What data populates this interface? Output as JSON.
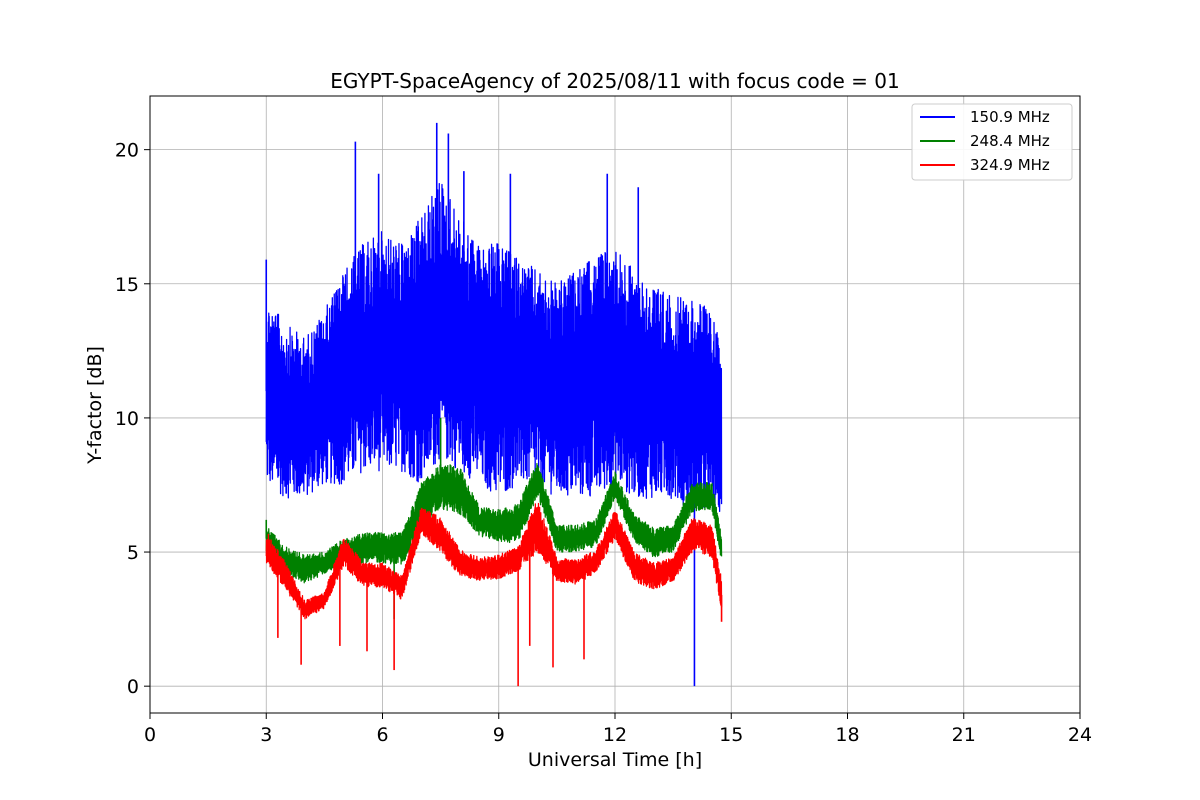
{
  "chart_data": {
    "type": "line",
    "title": "EGYPT-SpaceAgency of 2025/08/11 with focus code = 01",
    "xlabel": "Universal Time [h]",
    "ylabel": "Y-factor [dB]",
    "xlim": [
      0,
      24
    ],
    "ylim": [
      -1,
      22
    ],
    "xticks": [
      0,
      3,
      6,
      9,
      12,
      15,
      18,
      21,
      24
    ],
    "yticks": [
      0,
      5,
      10,
      15,
      20
    ],
    "grid": true,
    "legend_position": "top-right",
    "series": [
      {
        "name": "150.9 MHz",
        "color": "#0000ff",
        "x": [
          3.0,
          3.5,
          4.0,
          4.5,
          5.0,
          5.5,
          6.0,
          6.5,
          7.0,
          7.5,
          8.0,
          8.5,
          9.0,
          9.5,
          10.0,
          10.5,
          11.0,
          11.5,
          12.0,
          12.5,
          13.0,
          13.5,
          14.0,
          14.5,
          14.75
        ],
        "min": [
          7.5,
          7.0,
          7.0,
          7.5,
          7.5,
          8.0,
          8.0,
          8.0,
          7.5,
          8.5,
          8.0,
          7.5,
          7.0,
          7.5,
          7.5,
          7.0,
          7.0,
          7.0,
          7.5,
          7.0,
          7.0,
          7.0,
          6.5,
          6.5,
          6.5
        ],
        "max": [
          14.5,
          13.5,
          13.0,
          14.0,
          15.5,
          16.5,
          17.0,
          16.5,
          17.5,
          19.0,
          17.5,
          16.5,
          16.5,
          16.0,
          15.5,
          15.0,
          15.5,
          16.0,
          16.5,
          15.5,
          15.0,
          14.5,
          14.5,
          14.0,
          12.5
        ],
        "spikes": [
          [
            3.0,
            15.9
          ],
          [
            5.3,
            20.3
          ],
          [
            5.9,
            19.1
          ],
          [
            7.4,
            21.0
          ],
          [
            7.7,
            20.6
          ],
          [
            8.1,
            19.2
          ],
          [
            9.3,
            19.1
          ],
          [
            11.8,
            19.1
          ],
          [
            12.6,
            18.6
          ],
          [
            14.05,
            0.0
          ]
        ]
      },
      {
        "name": "248.4 MHz",
        "color": "#008000",
        "x": [
          3.0,
          3.5,
          4.0,
          4.5,
          5.0,
          5.5,
          6.0,
          6.5,
          7.0,
          7.5,
          8.0,
          8.5,
          9.0,
          9.5,
          10.0,
          10.5,
          11.0,
          11.5,
          12.0,
          12.5,
          13.0,
          13.5,
          14.0,
          14.5,
          14.75
        ],
        "min": [
          5.0,
          4.2,
          3.8,
          4.2,
          4.5,
          4.6,
          4.6,
          4.5,
          5.8,
          6.6,
          6.4,
          5.6,
          5.4,
          5.3,
          7.1,
          5.0,
          5.0,
          5.2,
          7.0,
          5.4,
          4.8,
          5.0,
          6.5,
          6.6,
          4.6
        ],
        "max": [
          6.0,
          5.2,
          4.9,
          5.0,
          5.5,
          5.7,
          5.8,
          5.7,
          7.6,
          8.3,
          8.2,
          6.7,
          6.6,
          6.8,
          8.4,
          6.0,
          6.0,
          6.2,
          8.0,
          6.4,
          5.9,
          6.0,
          7.6,
          7.6,
          5.6
        ],
        "spikes": [
          [
            3.0,
            6.2
          ],
          [
            7.5,
            10.0
          ],
          [
            6.3,
            2.5
          ]
        ]
      },
      {
        "name": "324.9 MHz",
        "color": "#ff0000",
        "x": [
          3.0,
          3.5,
          4.0,
          4.5,
          5.0,
          5.5,
          6.0,
          6.5,
          7.0,
          7.5,
          8.0,
          8.5,
          9.0,
          9.5,
          10.0,
          10.5,
          11.0,
          11.5,
          12.0,
          12.5,
          13.0,
          13.5,
          14.0,
          14.5,
          14.75
        ],
        "min": [
          4.6,
          3.6,
          2.5,
          2.9,
          4.5,
          3.7,
          3.7,
          3.2,
          5.7,
          5.0,
          4.1,
          3.9,
          4.0,
          4.3,
          5.0,
          3.9,
          3.8,
          4.2,
          5.5,
          3.9,
          3.6,
          3.9,
          5.0,
          4.8,
          2.8
        ],
        "max": [
          5.8,
          4.6,
          3.2,
          3.5,
          5.6,
          4.6,
          4.6,
          4.1,
          6.7,
          6.3,
          5.1,
          4.8,
          4.9,
          5.2,
          7.0,
          4.8,
          4.7,
          5.1,
          6.6,
          5.0,
          4.6,
          4.8,
          6.3,
          6.0,
          4.0
        ],
        "spikes": [
          [
            3.3,
            1.8
          ],
          [
            3.9,
            0.8
          ],
          [
            4.9,
            1.5
          ],
          [
            5.6,
            1.3
          ],
          [
            6.3,
            0.6
          ],
          [
            9.5,
            0.0
          ],
          [
            9.8,
            1.5
          ],
          [
            10.4,
            0.7
          ],
          [
            11.2,
            1.0
          ],
          [
            14.75,
            2.4
          ]
        ]
      }
    ]
  }
}
